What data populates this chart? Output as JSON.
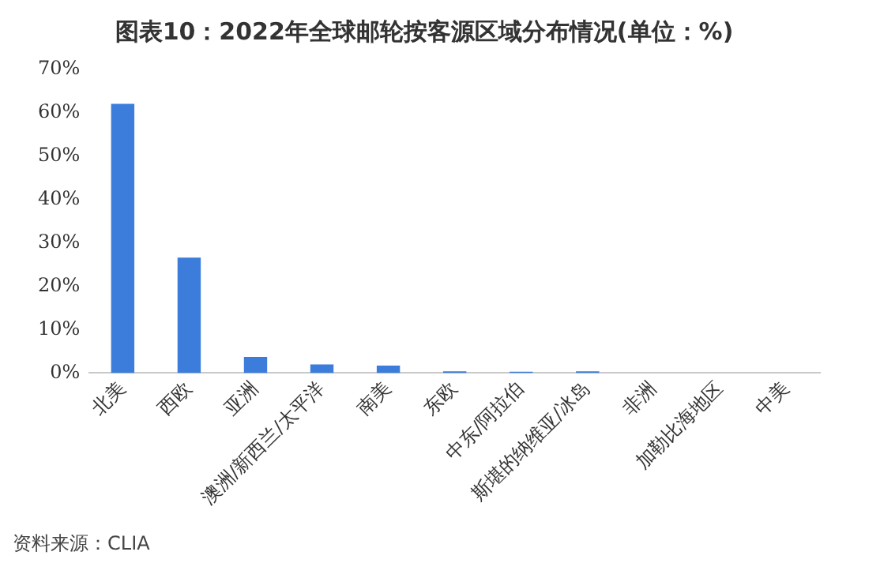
{
  "chart_data": {
    "type": "bar",
    "title": "图表10：2022年全球邮轮按客源区域分布情况(单位：%)",
    "categories": [
      "北美",
      "西欧",
      "亚洲",
      "澳洲/新西兰/太平洋",
      "南美",
      "东欧",
      "中东/阿拉伯",
      "斯堪的纳维亚/冰岛",
      "非洲",
      "加勒比海地区",
      "中美"
    ],
    "values": [
      62.1,
      26.6,
      3.7,
      2.0,
      1.7,
      0.4,
      0.3,
      0.4,
      null,
      null,
      null
    ],
    "color": "#3c7ddc",
    "ylim": [
      0,
      70
    ],
    "yticks": [
      {
        "value": 0,
        "label": "0%"
      },
      {
        "value": 10,
        "label": "10%"
      },
      {
        "value": 20,
        "label": "20%"
      },
      {
        "value": 30,
        "label": "30%"
      },
      {
        "value": 40,
        "label": "40%"
      },
      {
        "value": 50,
        "label": "50%"
      },
      {
        "value": 60,
        "label": "60%"
      },
      {
        "value": 70,
        "label": "70%"
      }
    ],
    "grid": false,
    "legend": false,
    "annotations": [
      "资料来源：CLIA"
    ]
  }
}
